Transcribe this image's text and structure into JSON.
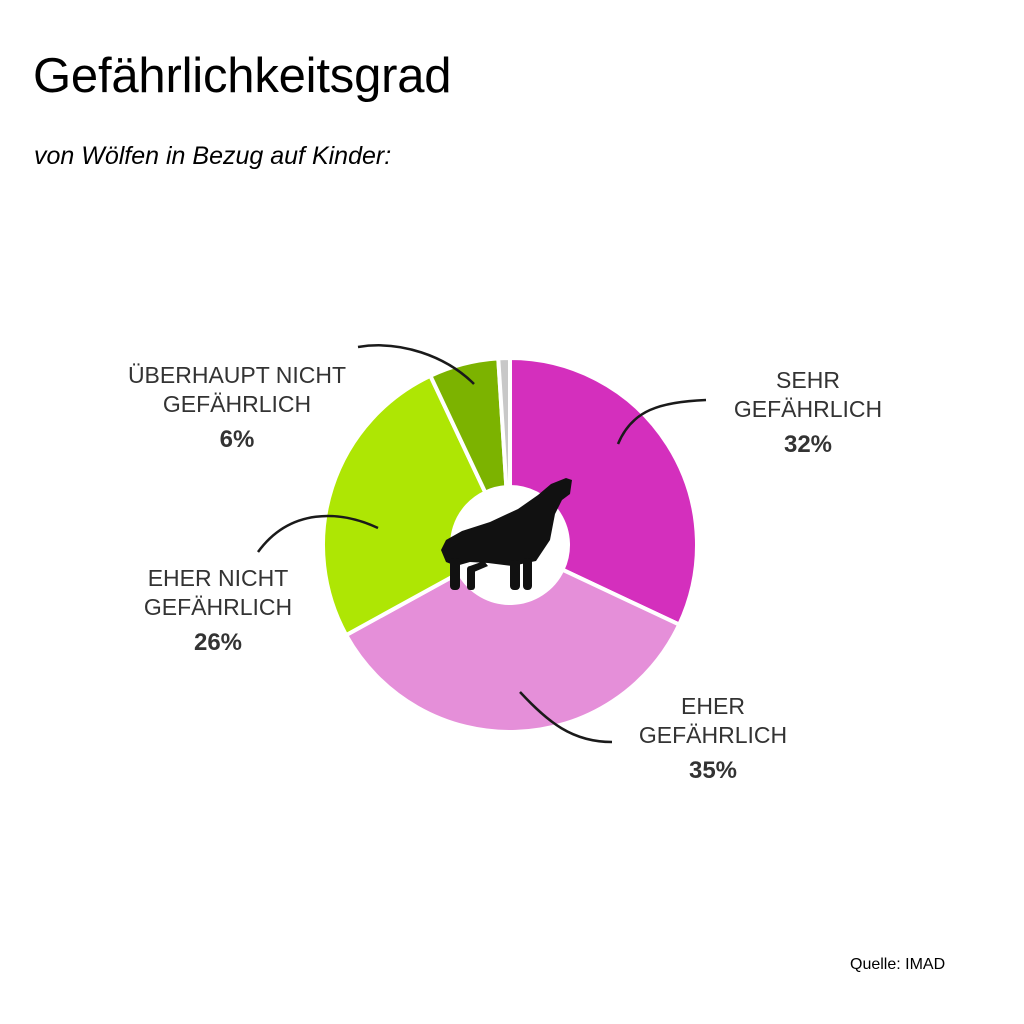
{
  "title": "Gefährlichkeitsgrad",
  "subtitle": "von Wölfen in Bezug auf Kinder:",
  "source": "Quelle: IMAD",
  "icon": "wolf-howling-icon",
  "chart_data": {
    "type": "pie",
    "variant": "donut",
    "title": "Gefährlichkeitsgrad",
    "subtitle": "von Wölfen in Bezug auf Kinder:",
    "unit": "%",
    "slices": [
      {
        "name": [
          "SEHR",
          "GEFÄHRLICH"
        ],
        "value": 32,
        "label": "32%",
        "color": "#d42fbd"
      },
      {
        "name": [
          "EHER",
          "GEFÄHRLICH"
        ],
        "value": 35,
        "label": "35%",
        "color": "#e58fd9"
      },
      {
        "name": [
          "EHER NICHT",
          "GEFÄHRLICH"
        ],
        "value": 26,
        "label": "26%",
        "color": "#aee604"
      },
      {
        "name": [
          "ÜBERHAUPT NICHT",
          "GEFÄHRLICH"
        ],
        "value": 6,
        "label": "6%",
        "color": "#7cb300"
      },
      {
        "name": [],
        "value": 1,
        "label": "",
        "color": "#c8c8c8"
      }
    ]
  }
}
